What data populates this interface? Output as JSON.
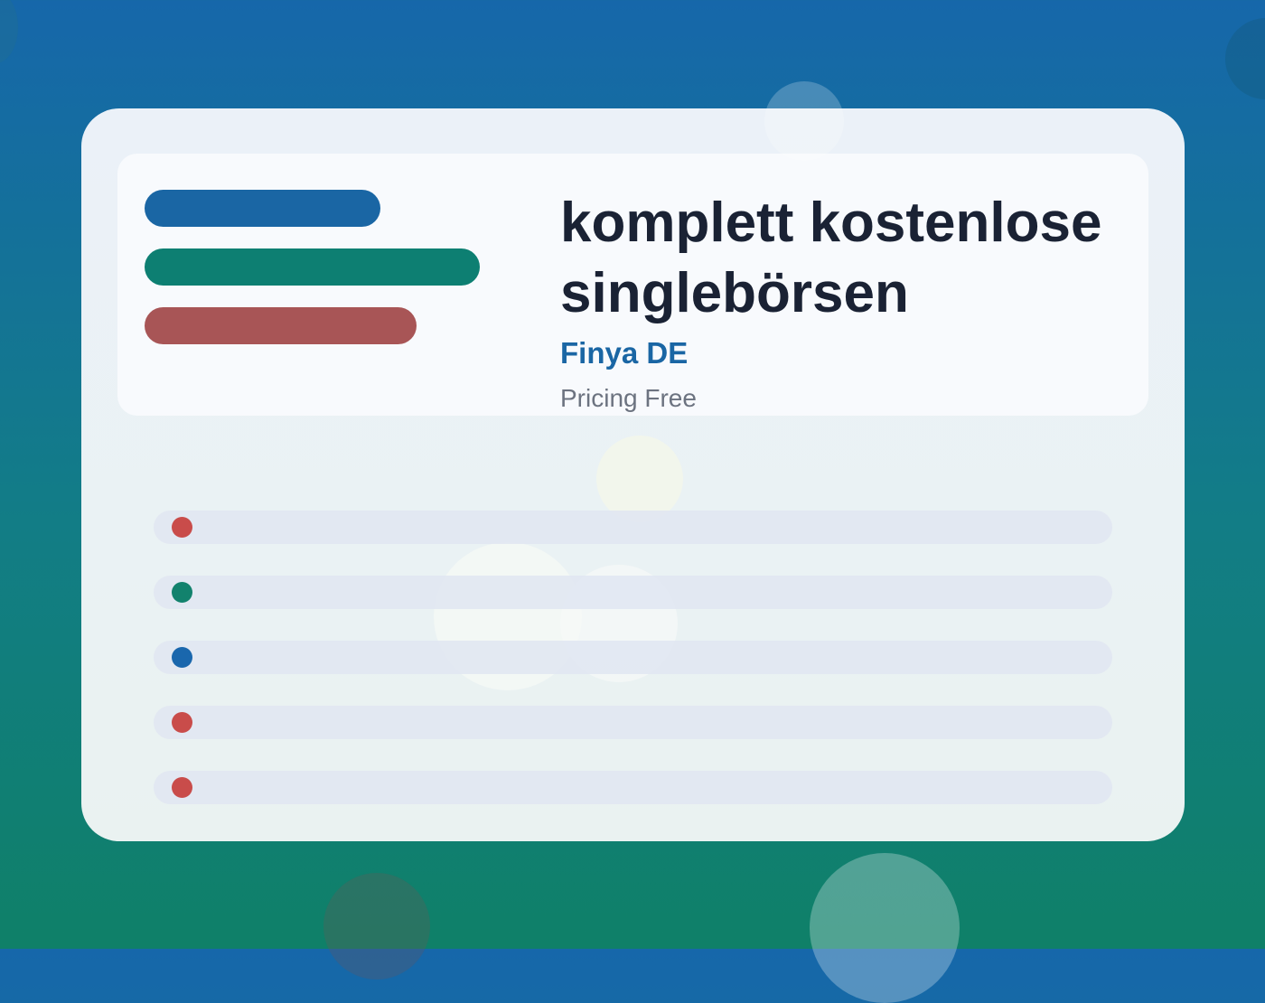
{
  "colors": {
    "accent_blue": "#1a66a4",
    "accent_green": "#0d7f72",
    "accent_red": "#a85556",
    "dot_red": "#c94c4a",
    "dot_green": "#12826d",
    "dot_blue": "#1a67ad"
  },
  "hero": {
    "title": "komplett kostenlose singlebörsen",
    "subtitle": "Finya DE",
    "meta": "Pricing Free"
  },
  "list": {
    "rows": [
      {
        "dot_color": "#c94c4a"
      },
      {
        "dot_color": "#12826d"
      },
      {
        "dot_color": "#1a67ad"
      },
      {
        "dot_color": "#c94c4a"
      },
      {
        "dot_color": "#c94c4a"
      }
    ]
  }
}
